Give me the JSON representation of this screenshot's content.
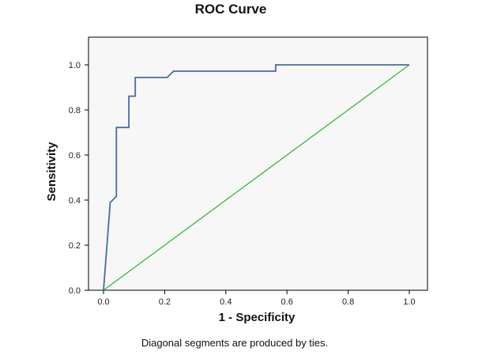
{
  "chart_data": {
    "type": "line",
    "title": "ROC Curve",
    "xlabel": "1 - Specificity",
    "ylabel": "Sensitivity",
    "footnote": "Diagonal segments are produced by ties.",
    "xlim": [
      0,
      1
    ],
    "ylim": [
      0,
      1
    ],
    "x_ticks": [
      "0.0",
      "0.2",
      "0.4",
      "0.6",
      "0.8",
      "1.0"
    ],
    "y_ticks": [
      "0.0",
      "0.2",
      "0.4",
      "0.6",
      "0.8",
      "1.0"
    ],
    "grid": false,
    "legend": "none",
    "series": [
      {
        "color": "#4a6aa8",
        "x": [
          0.0,
          0.022,
          0.042,
          0.042,
          0.083,
          0.083,
          0.104,
          0.104,
          0.208,
          0.229,
          0.563,
          0.563,
          1.0
        ],
        "y": [
          0.0,
          0.389,
          0.417,
          0.722,
          0.722,
          0.861,
          0.861,
          0.944,
          0.944,
          0.972,
          0.972,
          1.0,
          1.0
        ]
      },
      {
        "color": "#33bb33",
        "x": [
          0.0,
          1.0
        ],
        "y": [
          0.0,
          1.0
        ]
      }
    ],
    "plot_background": "#f7f7f7"
  }
}
